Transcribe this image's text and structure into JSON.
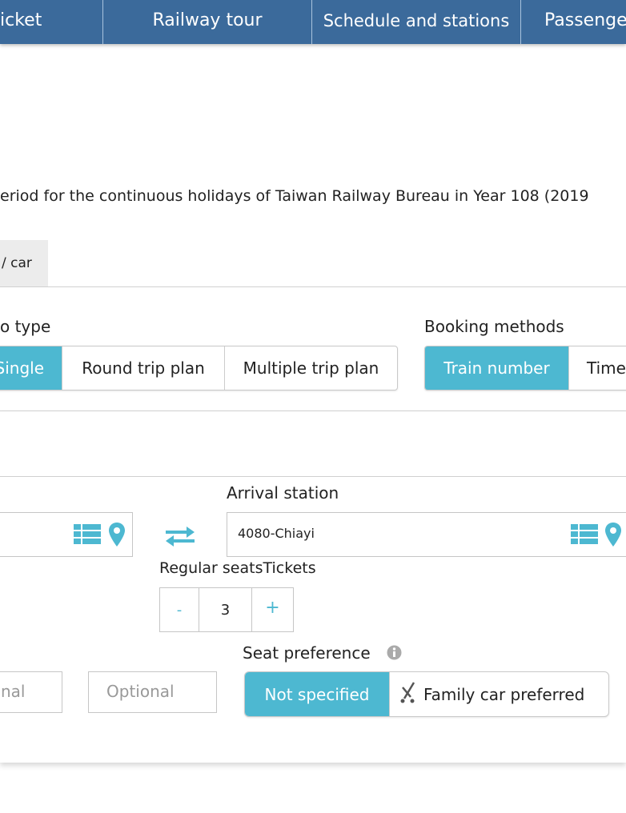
{
  "nav": {
    "items": [
      "icket",
      "Railway tour",
      "Schedule and stations",
      "Passenge"
    ]
  },
  "notice": "eriod for the continuous holidays of Taiwan Railway Bureau in Year 108 (2019",
  "tab": {
    "label": "/ car"
  },
  "trip_type": {
    "label": "o type",
    "options": [
      "Single",
      "Round trip plan",
      "Multiple trip plan"
    ],
    "selected": "Single"
  },
  "booking": {
    "label": "Booking methods",
    "options": [
      "Train number",
      "Time"
    ],
    "selected": "Train number"
  },
  "departure": {
    "value": ""
  },
  "arrival": {
    "label": "Arrival station",
    "value": "4080-Chiayi"
  },
  "tickets": {
    "label": "Regular seatsTickets",
    "minus": "-",
    "value": "3",
    "plus": "+"
  },
  "optional": {
    "field1": "nal",
    "field2": "Optional"
  },
  "seat_pref": {
    "label": "Seat preference",
    "options": [
      "Not specified",
      "Family car preferred"
    ],
    "selected": "Not specified"
  },
  "colors": {
    "nav": "#3b6a9b",
    "accent": "#4db8d1"
  }
}
